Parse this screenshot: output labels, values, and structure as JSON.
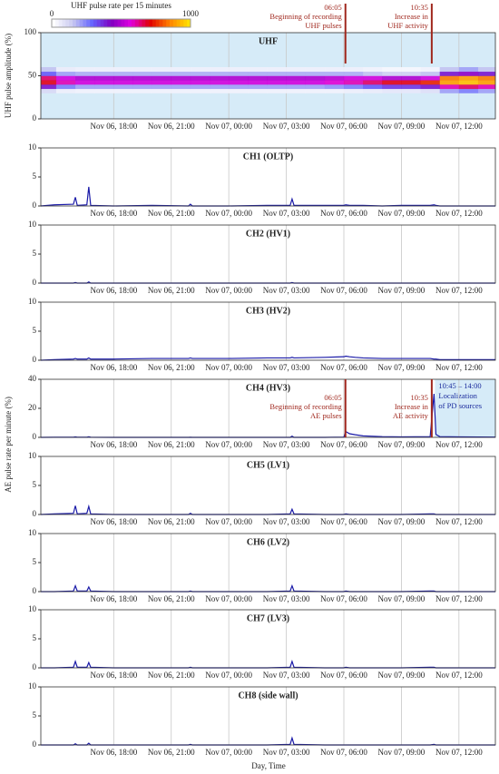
{
  "chart_data": [
    {
      "type": "heatmap",
      "title": "UHF",
      "ylabel": "UHF pulse amplitude (%)",
      "background": "#d6ebf8",
      "grid": true,
      "xbins": [
        14.2,
        15,
        16,
        17,
        18,
        19,
        20,
        21,
        22,
        23,
        24,
        25,
        26,
        27,
        28,
        29,
        30,
        31,
        32,
        33,
        34,
        35,
        36,
        37,
        37.9
      ],
      "ybins": [
        30,
        35,
        40,
        45,
        50,
        55,
        60
      ],
      "z": [
        [
          100,
          40,
          30,
          30,
          30,
          30,
          30,
          30,
          30,
          30,
          30,
          30,
          30,
          30,
          30,
          30,
          40,
          50,
          60,
          60,
          80,
          200,
          250,
          200
        ],
        [
          400,
          250,
          200,
          200,
          200,
          200,
          200,
          200,
          200,
          200,
          200,
          200,
          200,
          200,
          200,
          220,
          250,
          300,
          350,
          350,
          400,
          600,
          650,
          600
        ],
        [
          700,
          600,
          550,
          550,
          550,
          550,
          550,
          550,
          550,
          550,
          550,
          550,
          550,
          550,
          550,
          580,
          600,
          650,
          700,
          700,
          750,
          900,
          950,
          900
        ],
        [
          650,
          550,
          500,
          500,
          500,
          500,
          500,
          500,
          500,
          500,
          500,
          500,
          500,
          500,
          500,
          520,
          550,
          550,
          500,
          500,
          550,
          850,
          900,
          850
        ],
        [
          300,
          200,
          180,
          180,
          180,
          180,
          180,
          180,
          180,
          180,
          180,
          180,
          180,
          180,
          180,
          180,
          180,
          150,
          120,
          120,
          150,
          400,
          450,
          400
        ],
        [
          150,
          50,
          40,
          40,
          40,
          40,
          40,
          40,
          40,
          40,
          40,
          40,
          40,
          40,
          40,
          40,
          40,
          30,
          20,
          20,
          30,
          150,
          200,
          150
        ]
      ],
      "zlim": [
        0,
        1000
      ],
      "colorbar": {
        "title": "UHF pulse rate per 15 minutes",
        "ticks": [
          0,
          1000
        ],
        "colors": [
          "#ffffff",
          "#c8c8f0",
          "#6464ff",
          "#8000c0",
          "#e000e0",
          "#e00000",
          "#ff8000",
          "#ffe000"
        ]
      },
      "xlim": [
        14.2,
        37.9
      ],
      "ylim": [
        0,
        100
      ],
      "yticks": [
        0,
        50,
        100
      ],
      "xticks": [
        {
          "value": 18,
          "label": "Nov 06, 18:00"
        },
        {
          "value": 21,
          "label": "Nov 06, 21:00"
        },
        {
          "value": 24,
          "label": "Nov 07, 00:00"
        },
        {
          "value": 27,
          "label": "Nov 07, 03:00"
        },
        {
          "value": 30,
          "label": "Nov 07, 06:00"
        },
        {
          "value": 33,
          "label": "Nov 07, 09:00"
        },
        {
          "value": 36,
          "label": "Nov 07, 12:00"
        }
      ],
      "annotations": [
        {
          "x": 30.083,
          "text": [
            "06:05",
            "Beginning of recording",
            "UHF pulses"
          ]
        },
        {
          "x": 34.583,
          "text": [
            "10:35",
            "Increase in",
            "UHF activity"
          ]
        }
      ]
    },
    {
      "type": "line",
      "title": "CH1 (OLTP)",
      "color": "#1a1aa8",
      "grid": true,
      "x": [
        14.2,
        14.9,
        15.9,
        16.0,
        16.1,
        16.6,
        16.7,
        16.8,
        18,
        20,
        21.9,
        22.0,
        22.1,
        24,
        26,
        27.2,
        27.3,
        27.4,
        29,
        30.0,
        30.1,
        30.3,
        30.6,
        31,
        32,
        33,
        34.5,
        34.7,
        34.8,
        35,
        36,
        37.9
      ],
      "values": [
        0,
        0.2,
        0.3,
        1.5,
        0.1,
        0.2,
        3.3,
        0.1,
        0,
        0.1,
        0,
        0.3,
        0,
        0,
        0.1,
        0.1,
        1.2,
        0.1,
        0.1,
        0.1,
        0.2,
        0.1,
        0.1,
        0.1,
        0,
        0.1,
        0.1,
        0.2,
        0.1,
        0,
        0,
        0
      ],
      "xlim": [
        14.2,
        37.9
      ],
      "ylim": [
        0,
        10
      ],
      "yticks": [
        0,
        5,
        10
      ],
      "xticks": [
        {
          "value": 18,
          "label": "Nov 06, 18:00"
        },
        {
          "value": 21,
          "label": "Nov 06, 21:00"
        },
        {
          "value": 24,
          "label": "Nov 07, 00:00"
        },
        {
          "value": 27,
          "label": "Nov 07, 03:00"
        },
        {
          "value": 30,
          "label": "Nov 07, 06:00"
        },
        {
          "value": 33,
          "label": "Nov 07, 09:00"
        },
        {
          "value": 36,
          "label": "Nov 07, 12:00"
        }
      ]
    },
    {
      "type": "line",
      "title": "CH2 (HV1)",
      "color": "#1a1aa8",
      "grid": true,
      "x": [
        14.2,
        14.9,
        15.9,
        16.0,
        16.1,
        16.6,
        16.7,
        16.8,
        18,
        20,
        21.9,
        22.0,
        22.1,
        24,
        26,
        27.2,
        27.3,
        27.4,
        29,
        30.0,
        30.1,
        30.3,
        30.6,
        31,
        32,
        33,
        34.5,
        34.7,
        34.8,
        35,
        36,
        37.9
      ],
      "values": [
        0,
        0,
        0,
        0.1,
        0,
        0,
        0.2,
        0,
        0,
        0,
        0,
        0,
        0,
        0,
        0,
        0,
        0.1,
        0,
        0,
        0,
        0,
        0,
        0,
        0,
        0,
        0,
        0,
        0,
        0,
        0,
        0,
        0
      ],
      "xlim": [
        14.2,
        37.9
      ],
      "ylim": [
        0,
        10
      ],
      "yticks": [
        0,
        5,
        10
      ],
      "xticks": [
        {
          "value": 18,
          "label": "Nov 06, 18:00"
        },
        {
          "value": 21,
          "label": "Nov 06, 21:00"
        },
        {
          "value": 24,
          "label": "Nov 07, 00:00"
        },
        {
          "value": 27,
          "label": "Nov 07, 03:00"
        },
        {
          "value": 30,
          "label": "Nov 07, 06:00"
        },
        {
          "value": 33,
          "label": "Nov 07, 09:00"
        },
        {
          "value": 36,
          "label": "Nov 07, 12:00"
        }
      ]
    },
    {
      "type": "line",
      "title": "CH3 (HV2)",
      "color": "#1a1aa8",
      "grid": true,
      "x": [
        14.2,
        14.9,
        15.9,
        16.0,
        16.1,
        16.6,
        16.7,
        16.8,
        18,
        20,
        21.9,
        22.0,
        22.1,
        24,
        26,
        27.2,
        27.3,
        27.4,
        29,
        30.0,
        30.1,
        30.3,
        30.6,
        31,
        32,
        33,
        34.5,
        34.7,
        34.8,
        35,
        36,
        37.9
      ],
      "values": [
        0,
        0.1,
        0.2,
        0.3,
        0.2,
        0.2,
        0.4,
        0.2,
        0.2,
        0.3,
        0.3,
        0.4,
        0.3,
        0.3,
        0.4,
        0.4,
        0.5,
        0.4,
        0.5,
        0.6,
        0.7,
        0.6,
        0.5,
        0.4,
        0.3,
        0.3,
        0.3,
        0.2,
        0.2,
        0.1,
        0.1,
        0.1
      ],
      "xlim": [
        14.2,
        37.9
      ],
      "ylim": [
        0,
        10
      ],
      "yticks": [
        0,
        5,
        10
      ],
      "xticks": [
        {
          "value": 18,
          "label": "Nov 06, 18:00"
        },
        {
          "value": 21,
          "label": "Nov 06, 21:00"
        },
        {
          "value": 24,
          "label": "Nov 07, 00:00"
        },
        {
          "value": 27,
          "label": "Nov 07, 03:00"
        },
        {
          "value": 30,
          "label": "Nov 07, 06:00"
        },
        {
          "value": 33,
          "label": "Nov 07, 09:00"
        },
        {
          "value": 36,
          "label": "Nov 07, 12:00"
        }
      ]
    },
    {
      "type": "line",
      "title": "CH4 (HV3)",
      "color": "#1a1aa8",
      "grid": true,
      "x": [
        14.2,
        14.9,
        15.9,
        16.0,
        16.1,
        16.6,
        16.7,
        16.8,
        18,
        20,
        21.9,
        22.0,
        22.1,
        24,
        26,
        27.2,
        27.3,
        27.4,
        29,
        30.0,
        30.1,
        30.3,
        30.6,
        31,
        32,
        33,
        34.5,
        34.7,
        34.8,
        35,
        36,
        37.9
      ],
      "values": [
        0,
        0.1,
        0.1,
        0.3,
        0.1,
        0.1,
        0.4,
        0.1,
        0,
        0,
        0,
        0.1,
        0,
        0,
        0,
        0,
        0.8,
        0,
        0,
        0.2,
        4,
        2.5,
        1.8,
        1,
        0.5,
        0.3,
        0.5,
        30,
        2,
        0.5,
        0.3,
        0.2
      ],
      "xlim": [
        14.2,
        37.9
      ],
      "ylim": [
        0,
        40
      ],
      "yticks": [
        0,
        20,
        40
      ],
      "xticks": [
        {
          "value": 18,
          "label": "Nov 06, 18:00"
        },
        {
          "value": 21,
          "label": "Nov 06, 21:00"
        },
        {
          "value": 24,
          "label": "Nov 07, 00:00"
        },
        {
          "value": 27,
          "label": "Nov 07, 03:00"
        },
        {
          "value": 30,
          "label": "Nov 07, 06:00"
        },
        {
          "value": 33,
          "label": "Nov 07, 09:00"
        },
        {
          "value": 36,
          "label": "Nov 07, 12:00"
        }
      ],
      "annotations": [
        {
          "x": 30.083,
          "text": [
            "06:05",
            "Beginning of recording",
            "AE pulses"
          ]
        },
        {
          "x": 34.583,
          "text": [
            "10:35",
            "Increase in",
            "AE activity"
          ]
        }
      ],
      "highlight": {
        "x": [
          34.75,
          37.9
        ],
        "color": "#d6ebf8",
        "text": [
          "10:45 – 14:00",
          "Localization",
          "of PD sources"
        ]
      }
    },
    {
      "type": "line",
      "title": "CH5 (LV1)",
      "color": "#1a1aa8",
      "grid": true,
      "x": [
        14.2,
        14.9,
        15.9,
        16.0,
        16.1,
        16.6,
        16.7,
        16.8,
        18,
        20,
        21.9,
        22.0,
        22.1,
        24,
        26,
        27.2,
        27.3,
        27.4,
        29,
        30.0,
        30.1,
        30.3,
        30.6,
        31,
        32,
        33,
        34.5,
        34.7,
        34.8,
        35,
        36,
        37.9
      ],
      "values": [
        0,
        0.1,
        0.2,
        1.5,
        0.1,
        0.2,
        1.4,
        0.1,
        0,
        0,
        0,
        0.2,
        0,
        0,
        0,
        0.1,
        0.9,
        0.1,
        0,
        0,
        0.1,
        0,
        0,
        0,
        0,
        0,
        0.1,
        0.1,
        0,
        0,
        0,
        0
      ],
      "xlim": [
        14.2,
        37.9
      ],
      "ylim": [
        0,
        10
      ],
      "yticks": [
        0,
        5,
        10
      ],
      "xticks": [
        {
          "value": 18,
          "label": "Nov 06, 18:00"
        },
        {
          "value": 21,
          "label": "Nov 06, 21:00"
        },
        {
          "value": 24,
          "label": "Nov 07, 00:00"
        },
        {
          "value": 27,
          "label": "Nov 07, 03:00"
        },
        {
          "value": 30,
          "label": "Nov 07, 06:00"
        },
        {
          "value": 33,
          "label": "Nov 07, 09:00"
        },
        {
          "value": 36,
          "label": "Nov 07, 12:00"
        }
      ]
    },
    {
      "type": "line",
      "title": "CH6 (LV2)",
      "color": "#1a1aa8",
      "grid": true,
      "x": [
        14.2,
        14.9,
        15.9,
        16.0,
        16.1,
        16.6,
        16.7,
        16.8,
        18,
        20,
        21.9,
        22.0,
        22.1,
        24,
        26,
        27.2,
        27.3,
        27.4,
        29,
        30.0,
        30.1,
        30.3,
        30.6,
        31,
        32,
        33,
        34.5,
        34.7,
        34.8,
        35,
        36,
        37.9
      ],
      "values": [
        0,
        0,
        0.1,
        1,
        0.1,
        0.1,
        0.8,
        0.1,
        0,
        0,
        0,
        0.1,
        0,
        0,
        0,
        0.1,
        1,
        0.1,
        0,
        0,
        0.1,
        0,
        0,
        0,
        0,
        0,
        0.1,
        0.1,
        0,
        0,
        0,
        0
      ],
      "xlim": [
        14.2,
        37.9
      ],
      "ylim": [
        0,
        10
      ],
      "yticks": [
        0,
        5,
        10
      ],
      "xticks": [
        {
          "value": 18,
          "label": "Nov 06, 18:00"
        },
        {
          "value": 21,
          "label": "Nov 06, 21:00"
        },
        {
          "value": 24,
          "label": "Nov 07, 00:00"
        },
        {
          "value": 27,
          "label": "Nov 07, 03:00"
        },
        {
          "value": 30,
          "label": "Nov 07, 06:00"
        },
        {
          "value": 33,
          "label": "Nov 07, 09:00"
        },
        {
          "value": 36,
          "label": "Nov 07, 12:00"
        }
      ]
    },
    {
      "type": "line",
      "title": "CH7 (LV3)",
      "color": "#1a1aa8",
      "grid": true,
      "x": [
        14.2,
        14.9,
        15.9,
        16.0,
        16.1,
        16.6,
        16.7,
        16.8,
        18,
        20,
        21.9,
        22.0,
        22.1,
        24,
        26,
        27.2,
        27.3,
        27.4,
        29,
        30.0,
        30.1,
        30.3,
        30.6,
        31,
        32,
        33,
        34.5,
        34.7,
        34.8,
        35,
        36,
        37.9
      ],
      "values": [
        0,
        0,
        0.1,
        1.1,
        0.1,
        0.1,
        0.9,
        0.1,
        0,
        0,
        0,
        0.1,
        0,
        0,
        0,
        0.1,
        1.1,
        0.1,
        0,
        0,
        0.1,
        0,
        0,
        0,
        0,
        0,
        0.1,
        0.1,
        0,
        0,
        0,
        0
      ],
      "xlim": [
        14.2,
        37.9
      ],
      "ylim": [
        0,
        10
      ],
      "yticks": [
        0,
        5,
        10
      ],
      "xticks": [
        {
          "value": 18,
          "label": "Nov 06, 18:00"
        },
        {
          "value": 21,
          "label": "Nov 06, 21:00"
        },
        {
          "value": 24,
          "label": "Nov 07, 00:00"
        },
        {
          "value": 27,
          "label": "Nov 07, 03:00"
        },
        {
          "value": 30,
          "label": "Nov 07, 06:00"
        },
        {
          "value": 33,
          "label": "Nov 07, 09:00"
        },
        {
          "value": 36,
          "label": "Nov 07, 12:00"
        }
      ]
    },
    {
      "type": "line",
      "title": "CH8 (side wall)",
      "color": "#1a1aa8",
      "grid": true,
      "x": [
        14.2,
        14.9,
        15.9,
        16.0,
        16.1,
        16.6,
        16.7,
        16.8,
        18,
        20,
        21.9,
        22.0,
        22.1,
        24,
        26,
        27.2,
        27.3,
        27.4,
        29,
        30.0,
        30.1,
        30.3,
        30.6,
        31,
        32,
        33,
        34.5,
        34.7,
        34.8,
        35,
        36,
        37.9
      ],
      "values": [
        0,
        0,
        0,
        0.2,
        0,
        0,
        0.3,
        0,
        0,
        0,
        0,
        0.1,
        0,
        0,
        0,
        0.1,
        1.2,
        0.1,
        0,
        0,
        0,
        0,
        0,
        0,
        0,
        0,
        0,
        0.1,
        0,
        0,
        0,
        0
      ],
      "xlim": [
        14.2,
        37.9
      ],
      "ylim": [
        0,
        10
      ],
      "yticks": [
        0,
        5,
        10
      ],
      "xticks": [
        {
          "value": 18,
          "label": "Nov 06, 18:00"
        },
        {
          "value": 21,
          "label": "Nov 06, 21:00"
        },
        {
          "value": 24,
          "label": "Nov 07, 00:00"
        },
        {
          "value": 27,
          "label": "Nov 07, 03:00"
        },
        {
          "value": 30,
          "label": "Nov 07, 06:00"
        },
        {
          "value": 33,
          "label": "Nov 07, 09:00"
        },
        {
          "value": 36,
          "label": "Nov 07, 12:00"
        }
      ]
    }
  ],
  "shared_ylabel": "AE pulse rate per minute (%)",
  "xlabel": "Day, Time"
}
